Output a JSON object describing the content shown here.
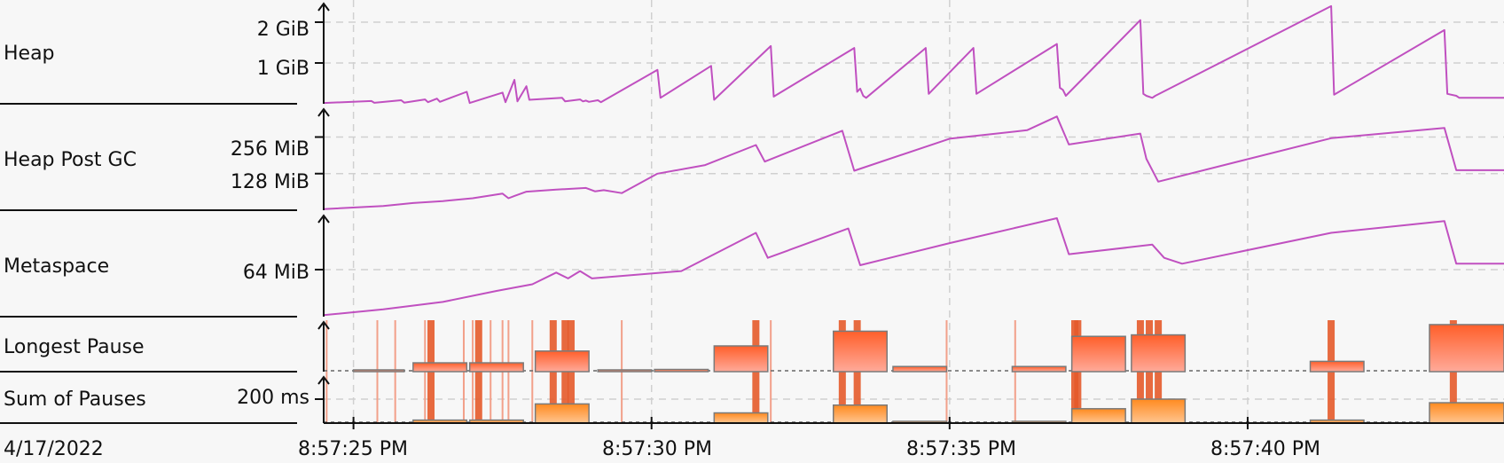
{
  "colors": {
    "line": "#c050c0",
    "bar_line_top": "#ff5f2a",
    "bar_line_bottom": "#ffaa9a",
    "bar_sum_top": "#ff8a1f",
    "bar_sum_bottom": "#ffc590",
    "vmark": "#e45a2a",
    "vmark_thin": "#f2a08a",
    "grid": "#d0d0d0",
    "axis": "#111111"
  },
  "chart_data": {
    "type": "line",
    "date_label": "4/17/2022",
    "x_ticks": [
      "8:57:25 PM",
      "8:57:30 PM",
      "8:57:35 PM",
      "8:57:40 PM"
    ],
    "x_range": [
      "8:57:24.5 PM",
      "8:57:44.3 PM"
    ],
    "panels": [
      {
        "name": "Heap",
        "ticks": [
          "2 GiB",
          "1 GiB"
        ],
        "tick_values": [
          2048,
          1024
        ],
        "unit": "MiB",
        "ylim": [
          0,
          2560
        ],
        "x": [
          24.5,
          25.3,
          25.35,
          25.8,
          25.85,
          26.2,
          26.25,
          26.4,
          26.45,
          26.9,
          26.95,
          27.5,
          27.55,
          27.7,
          27.75,
          27.9,
          27.95,
          28.5,
          28.55,
          28.8,
          28.85,
          28.9,
          28.95,
          29.1,
          29.15,
          30.1,
          30.15,
          31.0,
          31.05,
          32.0,
          32.05,
          33.4,
          33.45,
          33.5,
          33.55,
          33.6,
          34.6,
          34.65,
          35.4,
          35.45,
          36.8,
          36.85,
          36.9,
          36.95,
          38.2,
          38.25,
          38.3,
          38.4,
          38.45,
          41.4,
          41.45,
          43.3,
          43.35,
          43.5,
          43.55,
          44.3
        ],
        "y": [
          20,
          70,
          25,
          90,
          30,
          110,
          40,
          130,
          50,
          300,
          20,
          280,
          40,
          600,
          60,
          440,
          100,
          150,
          60,
          110,
          60,
          80,
          50,
          90,
          40,
          850,
          150,
          950,
          100,
          1450,
          180,
          1400,
          300,
          380,
          200,
          150,
          1400,
          250,
          1400,
          250,
          1500,
          400,
          350,
          200,
          2100,
          250,
          200,
          150,
          200,
          2450,
          230,
          1850,
          250,
          200,
          150,
          150
        ]
      },
      {
        "name": "Heap Post GC",
        "ticks": [
          "256 MiB",
          "128 MiB"
        ],
        "tick_values": [
          256,
          128
        ],
        "unit": "MiB",
        "ylim": [
          0,
          360
        ],
        "x": [
          24.5,
          25.5,
          26.0,
          26.5,
          27.0,
          27.5,
          27.6,
          27.7,
          27.9,
          28.4,
          28.9,
          29.05,
          29.2,
          29.5,
          30.1,
          30.9,
          31.75,
          31.9,
          33.2,
          33.4,
          35.0,
          36.3,
          36.8,
          37.0,
          38.2,
          38.3,
          38.5,
          41.4,
          43.3,
          43.5,
          44.3
        ],
        "y": [
          4,
          15,
          25,
          32,
          42,
          58,
          42,
          50,
          65,
          72,
          78,
          66,
          70,
          60,
          128,
          158,
          228,
          170,
          278,
          138,
          250,
          280,
          328,
          230,
          268,
          180,
          100,
          252,
          288,
          140,
          140
        ]
      },
      {
        "name": "Metaspace",
        "ticks": [
          "64 MiB"
        ],
        "tick_values": [
          64
        ],
        "unit": "MiB",
        "ylim": [
          0,
          140
        ],
        "x": [
          24.5,
          25.5,
          26.5,
          27.4,
          28.0,
          28.4,
          28.6,
          28.8,
          29.0,
          30.5,
          31.75,
          31.95,
          33.3,
          33.5,
          35.0,
          36.8,
          37.0,
          38.4,
          38.6,
          38.9,
          41.4,
          43.3,
          43.5,
          44.3
        ],
        "y": [
          2,
          10,
          20,
          35,
          44,
          60,
          52,
          62,
          52,
          62,
          114,
          80,
          120,
          70,
          100,
          134,
          85,
          98,
          80,
          72,
          114,
          130,
          72,
          72
        ]
      },
      {
        "name": "Longest Pause",
        "unit": "ms",
        "ylim": [
          0,
          70
        ],
        "bars": [
          {
            "x0": 25.0,
            "x1": 25.85,
            "v": 1
          },
          {
            "x0": 26.0,
            "x1": 26.9,
            "v": 12
          },
          {
            "x0": 26.95,
            "x1": 27.85,
            "v": 12
          },
          {
            "x0": 28.05,
            "x1": 28.95,
            "v": 28
          },
          {
            "x0": 29.1,
            "x1": 30.0,
            "v": 1
          },
          {
            "x0": 30.05,
            "x1": 30.95,
            "v": 3
          },
          {
            "x0": 31.05,
            "x1": 31.95,
            "v": 35
          },
          {
            "x0": 33.05,
            "x1": 33.95,
            "v": 55
          },
          {
            "x0": 34.05,
            "x1": 34.95,
            "v": 7
          },
          {
            "x0": 36.05,
            "x1": 36.95,
            "v": 7
          },
          {
            "x0": 37.05,
            "x1": 37.95,
            "v": 48
          },
          {
            "x0": 38.05,
            "x1": 38.95,
            "v": 50
          },
          {
            "x0": 41.05,
            "x1": 41.95,
            "v": 14
          },
          {
            "x0": 43.05,
            "x1": 44.3,
            "v": 64
          }
        ]
      },
      {
        "name": "Sum of Pauses",
        "ticks": [
          "200 ms"
        ],
        "tick_values": [
          200
        ],
        "unit": "ms",
        "ylim": [
          0,
          400
        ],
        "bars": [
          {
            "x0": 26.0,
            "x1": 26.9,
            "v": 25
          },
          {
            "x0": 26.95,
            "x1": 27.85,
            "v": 25
          },
          {
            "x0": 28.05,
            "x1": 28.95,
            "v": 160
          },
          {
            "x0": 31.05,
            "x1": 31.95,
            "v": 85
          },
          {
            "x0": 33.05,
            "x1": 33.95,
            "v": 150
          },
          {
            "x0": 34.05,
            "x1": 34.95,
            "v": 8
          },
          {
            "x0": 36.05,
            "x1": 36.95,
            "v": 5
          },
          {
            "x0": 37.05,
            "x1": 37.95,
            "v": 120
          },
          {
            "x0": 38.05,
            "x1": 38.95,
            "v": 200
          },
          {
            "x0": 41.05,
            "x1": 41.95,
            "v": 25
          },
          {
            "x0": 43.05,
            "x1": 44.3,
            "v": 170
          }
        ]
      }
    ],
    "gc_markers": {
      "thick": [
        26.3,
        27.1,
        28.35,
        28.55,
        28.65,
        31.75,
        33.2,
        33.45,
        37.1,
        37.15,
        38.2,
        38.35,
        38.5,
        41.4,
        43.45
      ],
      "thin": [
        24.55,
        25.4,
        25.7,
        26.2,
        26.85,
        27.0,
        27.3,
        27.5,
        27.6,
        28.0,
        29.5,
        32.0,
        34.95,
        36.1
      ]
    }
  }
}
